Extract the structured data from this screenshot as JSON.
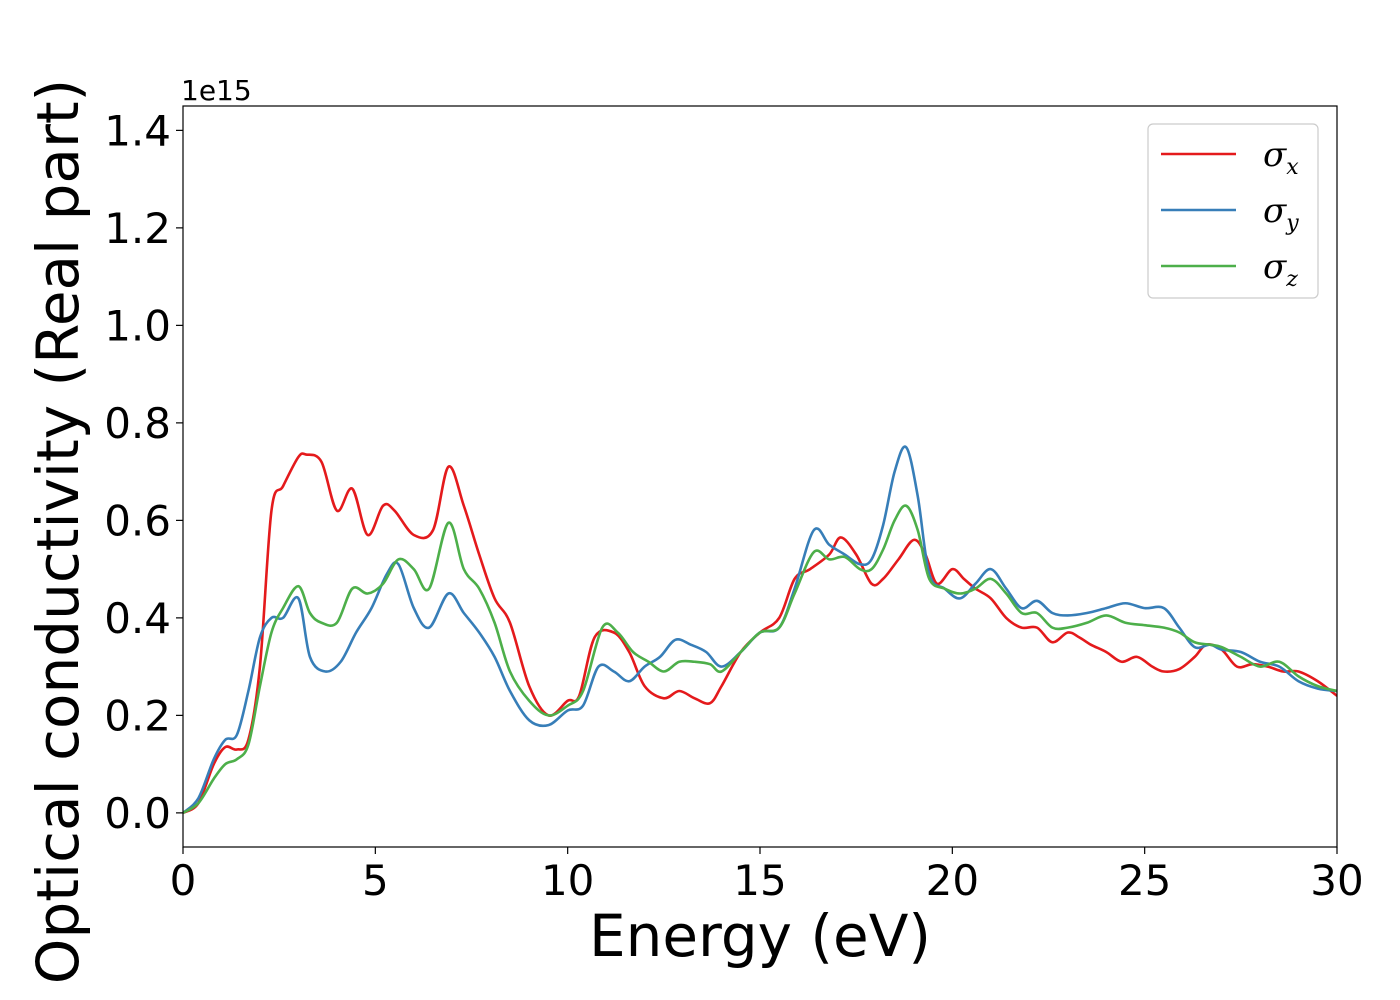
{
  "chart_data": {
    "type": "line",
    "title": "",
    "xlabel": "Energy (eV)",
    "ylabel": "Optical conductivity (Real part)",
    "y_offset_label": "1e15",
    "y_scale_factor": 1000000000000000.0,
    "xlim": [
      0,
      30
    ],
    "ylim": [
      -0.07,
      1.45
    ],
    "x_ticks": [
      0,
      5,
      10,
      15,
      20,
      25,
      30
    ],
    "x_tick_labels": [
      "0",
      "5",
      "10",
      "15",
      "20",
      "25",
      "30"
    ],
    "y_ticks": [
      0.0,
      0.2,
      0.4,
      0.6,
      0.8,
      1.0,
      1.2,
      1.4
    ],
    "y_tick_labels": [
      "0.0",
      "0.2",
      "0.4",
      "0.6",
      "0.8",
      "1.0",
      "1.2",
      "1.4"
    ],
    "grid": false,
    "legend_position": "top-right",
    "series": [
      {
        "name": "σx",
        "symbol": "σ",
        "subscript": "x",
        "color": "#e41a1c",
        "x": [
          0,
          0.4,
          0.8,
          1.1,
          1.4,
          1.7,
          2.0,
          2.3,
          2.6,
          3.0,
          3.2,
          3.6,
          4.0,
          4.4,
          4.8,
          5.2,
          5.5,
          6.0,
          6.5,
          6.9,
          7.3,
          7.7,
          8.1,
          8.5,
          9.0,
          9.5,
          10.0,
          10.3,
          10.7,
          11.2,
          11.6,
          12.0,
          12.5,
          12.9,
          13.3,
          13.7,
          14.0,
          14.5,
          15.0,
          15.5,
          15.9,
          16.3,
          16.8,
          17.1,
          17.5,
          17.9,
          18.2,
          18.6,
          19.0,
          19.3,
          19.6,
          20.0,
          20.3,
          20.6,
          21.0,
          21.4,
          21.8,
          22.2,
          22.6,
          23.0,
          23.3,
          23.6,
          24.0,
          24.4,
          24.8,
          25.2,
          25.5,
          25.9,
          26.3,
          26.6,
          27.0,
          27.4,
          27.8,
          28.2,
          28.6,
          29.0,
          29.5,
          30.0
        ],
        "y": [
          0.0,
          0.02,
          0.1,
          0.135,
          0.13,
          0.15,
          0.3,
          0.62,
          0.67,
          0.73,
          0.735,
          0.72,
          0.62,
          0.665,
          0.57,
          0.63,
          0.62,
          0.57,
          0.58,
          0.71,
          0.63,
          0.53,
          0.44,
          0.39,
          0.26,
          0.2,
          0.23,
          0.24,
          0.36,
          0.37,
          0.33,
          0.26,
          0.235,
          0.25,
          0.235,
          0.225,
          0.26,
          0.33,
          0.37,
          0.4,
          0.48,
          0.5,
          0.53,
          0.565,
          0.53,
          0.47,
          0.48,
          0.52,
          0.56,
          0.53,
          0.47,
          0.5,
          0.48,
          0.46,
          0.44,
          0.4,
          0.38,
          0.38,
          0.35,
          0.37,
          0.36,
          0.345,
          0.33,
          0.31,
          0.32,
          0.3,
          0.29,
          0.295,
          0.32,
          0.345,
          0.335,
          0.3,
          0.305,
          0.3,
          0.29,
          0.29,
          0.27,
          0.24
        ]
      },
      {
        "name": "σy",
        "symbol": "σ",
        "subscript": "y",
        "color": "#377eb8",
        "x": [
          0,
          0.4,
          0.8,
          1.1,
          1.4,
          1.7,
          2.0,
          2.3,
          2.6,
          3.0,
          3.3,
          3.7,
          4.1,
          4.5,
          4.9,
          5.3,
          5.6,
          6.0,
          6.4,
          6.9,
          7.3,
          7.7,
          8.1,
          8.5,
          9.0,
          9.5,
          10.0,
          10.4,
          10.8,
          11.2,
          11.6,
          12.0,
          12.4,
          12.8,
          13.2,
          13.6,
          14.0,
          14.5,
          15.0,
          15.5,
          15.9,
          16.4,
          16.8,
          17.2,
          17.6,
          17.9,
          18.2,
          18.5,
          18.8,
          19.1,
          19.4,
          19.8,
          20.2,
          20.6,
          21.0,
          21.4,
          21.8,
          22.2,
          22.6,
          23.0,
          23.5,
          24.0,
          24.5,
          25.0,
          25.5,
          25.9,
          26.3,
          26.7,
          27.0,
          27.5,
          28.0,
          28.5,
          29.0,
          29.5,
          30.0
        ],
        "y": [
          0.0,
          0.03,
          0.11,
          0.15,
          0.16,
          0.25,
          0.36,
          0.4,
          0.4,
          0.44,
          0.32,
          0.29,
          0.31,
          0.37,
          0.42,
          0.49,
          0.51,
          0.42,
          0.38,
          0.45,
          0.41,
          0.37,
          0.32,
          0.25,
          0.19,
          0.18,
          0.21,
          0.22,
          0.3,
          0.29,
          0.27,
          0.3,
          0.32,
          0.355,
          0.345,
          0.33,
          0.3,
          0.33,
          0.37,
          0.38,
          0.46,
          0.58,
          0.55,
          0.53,
          0.51,
          0.52,
          0.59,
          0.7,
          0.75,
          0.65,
          0.49,
          0.46,
          0.44,
          0.47,
          0.5,
          0.46,
          0.42,
          0.435,
          0.41,
          0.405,
          0.41,
          0.42,
          0.43,
          0.42,
          0.42,
          0.38,
          0.34,
          0.345,
          0.335,
          0.33,
          0.31,
          0.3,
          0.27,
          0.255,
          0.25
        ]
      },
      {
        "name": "σz",
        "symbol": "σ",
        "subscript": "z",
        "color": "#4daf4a",
        "x": [
          0,
          0.4,
          0.8,
          1.1,
          1.4,
          1.7,
          2.0,
          2.3,
          2.6,
          3.0,
          3.3,
          3.6,
          4.0,
          4.4,
          4.8,
          5.2,
          5.6,
          6.0,
          6.4,
          6.9,
          7.3,
          7.7,
          8.1,
          8.5,
          9.0,
          9.5,
          10.0,
          10.4,
          10.9,
          11.3,
          11.7,
          12.1,
          12.5,
          12.9,
          13.3,
          13.7,
          14.0,
          14.5,
          15.0,
          15.5,
          15.9,
          16.4,
          16.8,
          17.2,
          17.6,
          17.9,
          18.2,
          18.5,
          18.8,
          19.1,
          19.4,
          19.8,
          20.2,
          20.6,
          21.0,
          21.4,
          21.8,
          22.2,
          22.6,
          23.0,
          23.5,
          24.0,
          24.5,
          25.0,
          25.5,
          25.9,
          26.3,
          26.7,
          27.0,
          27.5,
          28.0,
          28.5,
          29.0,
          29.5,
          30.0
        ],
        "y": [
          0.0,
          0.02,
          0.07,
          0.1,
          0.11,
          0.14,
          0.26,
          0.37,
          0.42,
          0.465,
          0.41,
          0.39,
          0.39,
          0.46,
          0.45,
          0.47,
          0.52,
          0.5,
          0.46,
          0.595,
          0.5,
          0.46,
          0.39,
          0.29,
          0.23,
          0.2,
          0.22,
          0.25,
          0.38,
          0.37,
          0.33,
          0.31,
          0.29,
          0.31,
          0.31,
          0.305,
          0.29,
          0.33,
          0.37,
          0.38,
          0.45,
          0.535,
          0.52,
          0.525,
          0.5,
          0.5,
          0.54,
          0.6,
          0.63,
          0.58,
          0.48,
          0.46,
          0.45,
          0.46,
          0.48,
          0.45,
          0.41,
          0.41,
          0.38,
          0.38,
          0.39,
          0.405,
          0.39,
          0.385,
          0.38,
          0.37,
          0.35,
          0.345,
          0.34,
          0.32,
          0.3,
          0.31,
          0.28,
          0.26,
          0.25
        ]
      }
    ]
  }
}
